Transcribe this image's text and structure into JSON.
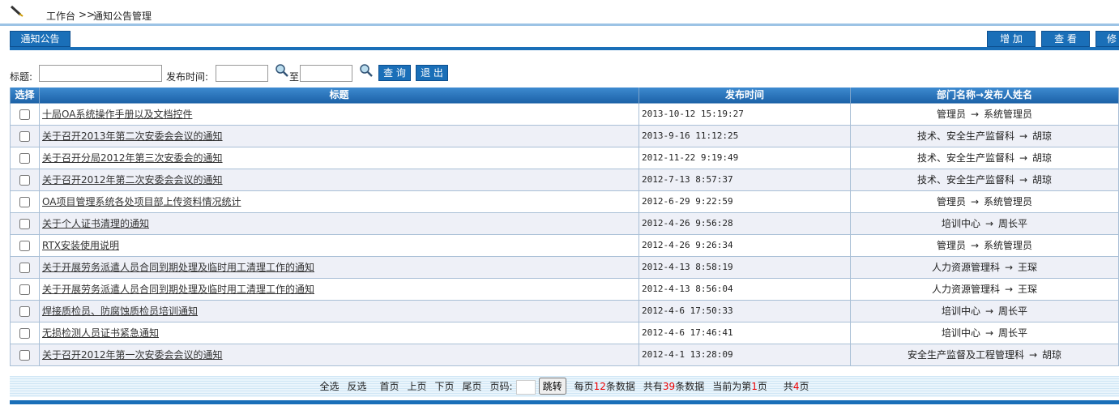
{
  "breadcrumb": [
    "工作台",
    ">>",
    "通知公告管理"
  ],
  "tab": "通知公告",
  "toolbar": [
    "增 加",
    "查 看",
    "修"
  ],
  "search": {
    "title_label": "标题:",
    "time_label": "发布时间:",
    "to_label": "至",
    "buttons": [
      "查 询",
      "退 出"
    ]
  },
  "table": {
    "headers": [
      "选择",
      "标题",
      "发布时间",
      "部门名称→发布人姓名"
    ],
    "arrow": "→",
    "rows": [
      {
        "title": "十局OA系统操作手册以及文档控件",
        "time": "2013-10-12 15:19:27",
        "dept": "管理员",
        "person": "系统管理员"
      },
      {
        "title": "关于召开2013年第二次安委会会议的通知",
        "time": "2013-9-16 11:12:25",
        "dept": "技术、安全生产监督科",
        "person": "胡琼"
      },
      {
        "title": "关于召开分局2012年第三次安委会的通知",
        "time": "2012-11-22 9:19:49",
        "dept": "技术、安全生产监督科",
        "person": "胡琼"
      },
      {
        "title": "关于召开2012年第二次安委会会议的通知",
        "time": "2012-7-13 8:57:37",
        "dept": "技术、安全生产监督科",
        "person": "胡琼"
      },
      {
        "title": "OA项目管理系统各处项目部上传资料情况统计",
        "time": "2012-6-29 9:22:59",
        "dept": "管理员",
        "person": "系统管理员"
      },
      {
        "title": "关于个人证书清理的通知",
        "time": "2012-4-26 9:56:28",
        "dept": "培训中心",
        "person": "周长平"
      },
      {
        "title": "RTX安装使用说明",
        "time": "2012-4-26 9:26:34",
        "dept": "管理员",
        "person": "系统管理员"
      },
      {
        "title": "关于开展劳务派遣人员合同到期处理及临时用工清理工作的通知",
        "time": "2012-4-13 8:58:19",
        "dept": "人力资源管理科",
        "person": "王琛"
      },
      {
        "title": "关于开展劳务派遣人员合同到期处理及临时用工清理工作的通知",
        "time": "2012-4-13 8:56:04",
        "dept": "人力资源管理科",
        "person": "王琛"
      },
      {
        "title": "焊接质检员、防腐蚀质检员培训通知",
        "time": "2012-4-6 17:50:33",
        "dept": "培训中心",
        "person": "周长平"
      },
      {
        "title": "无损检测人员证书紧急通知",
        "time": "2012-4-6 17:46:41",
        "dept": "培训中心",
        "person": "周长平"
      },
      {
        "title": "关于召开2012年第一次安委会会议的通知",
        "time": "2012-4-1 13:28:09",
        "dept": "安全生产监督及工程管理科",
        "person": "胡琼"
      }
    ]
  },
  "pager": {
    "links": [
      "全选",
      "反选",
      "首页",
      "上页",
      "下页",
      "尾页"
    ],
    "page_label": "页码:",
    "jump": "跳转",
    "per_page_pre": "每页",
    "per_page": 12,
    "per_page_post": "条数据",
    "total_pre": "共有",
    "total": 39,
    "total_post": "条数据",
    "current_pre": "当前为第",
    "current": 1,
    "current_post": "页",
    "pages_pre": "共",
    "pages": 4,
    "pages_post": "页"
  }
}
